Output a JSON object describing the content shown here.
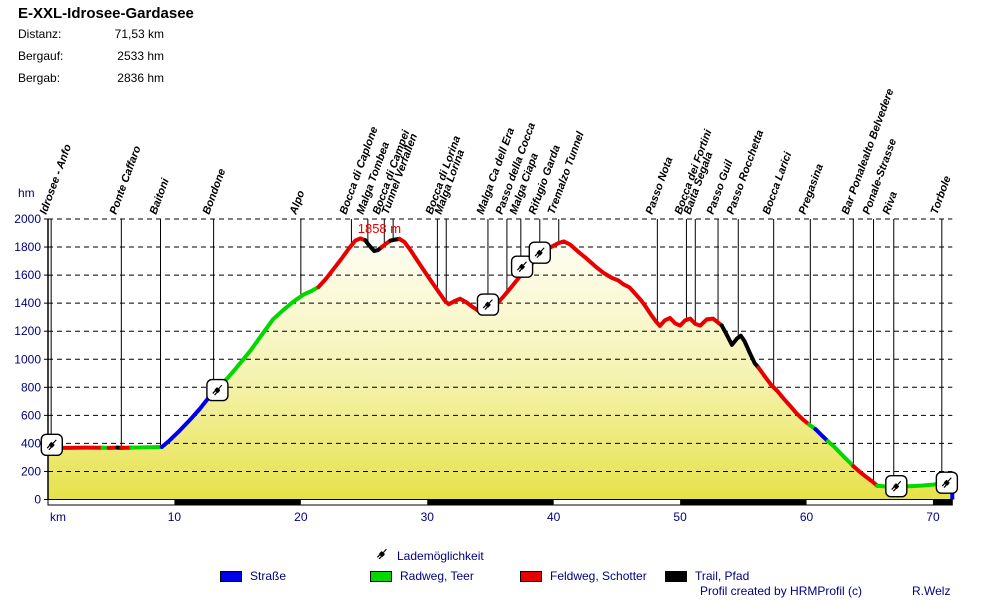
{
  "header": {
    "title": "E-XXL-Idrosee-Gardasee",
    "stats": [
      {
        "label": "Distanz:",
        "value": "71,53 km"
      },
      {
        "label": "Bergauf:",
        "value": "2533 hm"
      },
      {
        "label": "Bergab:",
        "value": "2836 hm"
      }
    ]
  },
  "chart_data": {
    "type": "area",
    "xlabel": "km",
    "ylabel": "hm",
    "xlim": [
      0,
      71.53
    ],
    "ylim": [
      0,
      2000
    ],
    "x_ticks": [
      10,
      20,
      30,
      40,
      50,
      60,
      70
    ],
    "y_tick_step": 200,
    "grid": "horizontal-dashed",
    "legend_position": "bottom",
    "peak_label": {
      "text": "1858 m",
      "km": 24.5,
      "color": "#ee0000"
    },
    "surface_colors": {
      "strasse": "#0000e8",
      "radweg": "#00d800",
      "feldweg": "#e80000",
      "trail": "#000000"
    },
    "area_fill_top": "#ffffff",
    "area_fill_mid": "#f5f3b2",
    "area_fill_bottom": "#e6e24a",
    "segments": [
      {
        "surface": "feldweg",
        "points": [
          [
            0,
            370
          ],
          [
            1.5,
            368
          ],
          [
            3,
            370
          ],
          [
            4.3,
            369
          ]
        ]
      },
      {
        "surface": "radweg",
        "points": [
          [
            4.3,
            369
          ],
          [
            4.8,
            368
          ]
        ]
      },
      {
        "surface": "feldweg",
        "points": [
          [
            4.8,
            368
          ],
          [
            5.5,
            370
          ]
        ]
      },
      {
        "surface": "trail",
        "points": [
          [
            5.5,
            370
          ],
          [
            5.8,
            368
          ]
        ]
      },
      {
        "surface": "feldweg",
        "points": [
          [
            5.8,
            368
          ],
          [
            6.6,
            370
          ]
        ]
      },
      {
        "surface": "radweg",
        "points": [
          [
            6.6,
            370
          ],
          [
            9.0,
            374
          ]
        ]
      },
      {
        "surface": "strasse",
        "points": [
          [
            9.0,
            374
          ],
          [
            9.6,
            420
          ],
          [
            10.4,
            490
          ],
          [
            11.2,
            565
          ],
          [
            12.0,
            645
          ],
          [
            12.7,
            725
          ],
          [
            13.3,
            790
          ]
        ]
      },
      {
        "surface": "radweg",
        "points": [
          [
            13.3,
            790
          ],
          [
            14.2,
            865
          ],
          [
            15.0,
            950
          ],
          [
            16.0,
            1060
          ],
          [
            17.0,
            1185
          ],
          [
            17.8,
            1285
          ],
          [
            18.6,
            1350
          ],
          [
            19.4,
            1410
          ],
          [
            20.2,
            1460
          ],
          [
            20.8,
            1485
          ],
          [
            21.4,
            1515
          ]
        ]
      },
      {
        "surface": "feldweg",
        "points": [
          [
            21.4,
            1515
          ],
          [
            22.0,
            1575
          ],
          [
            22.6,
            1645
          ],
          [
            23.2,
            1715
          ],
          [
            23.8,
            1790
          ],
          [
            24.3,
            1845
          ],
          [
            24.7,
            1862
          ],
          [
            25.1,
            1848
          ]
        ]
      },
      {
        "surface": "trail",
        "points": [
          [
            25.1,
            1848
          ],
          [
            25.4,
            1812
          ],
          [
            25.8,
            1772
          ],
          [
            26.1,
            1778
          ],
          [
            26.4,
            1800
          ]
        ]
      },
      {
        "surface": "feldweg",
        "points": [
          [
            26.4,
            1800
          ],
          [
            26.8,
            1828
          ],
          [
            27.1,
            1846
          ]
        ]
      },
      {
        "surface": "trail",
        "points": [
          [
            27.1,
            1846
          ],
          [
            27.5,
            1854
          ],
          [
            27.8,
            1858
          ]
        ]
      },
      {
        "surface": "feldweg",
        "points": [
          [
            27.8,
            1858
          ],
          [
            28.2,
            1835
          ],
          [
            28.7,
            1775
          ],
          [
            29.2,
            1705
          ],
          [
            29.8,
            1625
          ],
          [
            30.4,
            1545
          ],
          [
            31.0,
            1468
          ],
          [
            31.4,
            1415
          ],
          [
            31.7,
            1392
          ],
          [
            32.1,
            1412
          ],
          [
            32.6,
            1432
          ],
          [
            33.1,
            1405
          ],
          [
            33.6,
            1372
          ],
          [
            34.1,
            1342
          ],
          [
            34.6,
            1352
          ],
          [
            35.0,
            1338
          ],
          [
            35.5,
            1395
          ],
          [
            36.1,
            1455
          ],
          [
            36.7,
            1520
          ],
          [
            37.3,
            1588
          ],
          [
            37.9,
            1648
          ],
          [
            38.5,
            1705
          ],
          [
            39.1,
            1755
          ],
          [
            39.7,
            1795
          ],
          [
            40.3,
            1825
          ],
          [
            40.8,
            1840
          ],
          [
            41.3,
            1818
          ],
          [
            41.9,
            1770
          ],
          [
            42.6,
            1718
          ],
          [
            43.3,
            1662
          ],
          [
            44.0,
            1612
          ],
          [
            44.6,
            1580
          ],
          [
            45.1,
            1562
          ],
          [
            45.5,
            1535
          ],
          [
            46.0,
            1512
          ],
          [
            46.4,
            1472
          ],
          [
            46.9,
            1422
          ],
          [
            47.3,
            1372
          ],
          [
            47.7,
            1318
          ],
          [
            48.1,
            1268
          ],
          [
            48.4,
            1238
          ],
          [
            48.8,
            1278
          ],
          [
            49.2,
            1294
          ],
          [
            49.6,
            1256
          ],
          [
            50.0,
            1240
          ],
          [
            50.4,
            1278
          ],
          [
            50.8,
            1290
          ],
          [
            51.2,
            1252
          ],
          [
            51.6,
            1240
          ],
          [
            52.1,
            1284
          ],
          [
            52.6,
            1290
          ],
          [
            53.0,
            1262
          ],
          [
            53.3,
            1240
          ]
        ]
      },
      {
        "surface": "trail",
        "points": [
          [
            53.3,
            1240
          ],
          [
            53.7,
            1172
          ],
          [
            54.1,
            1102
          ],
          [
            54.5,
            1148
          ],
          [
            54.8,
            1168
          ],
          [
            55.1,
            1128
          ],
          [
            55.5,
            1048
          ],
          [
            55.9,
            972
          ],
          [
            56.2,
            940
          ]
        ]
      },
      {
        "surface": "feldweg",
        "points": [
          [
            56.2,
            940
          ],
          [
            56.7,
            878
          ],
          [
            57.2,
            818
          ],
          [
            57.7,
            772
          ],
          [
            58.2,
            718
          ],
          [
            58.7,
            668
          ],
          [
            59.2,
            615
          ],
          [
            59.7,
            572
          ],
          [
            60.2,
            535
          ]
        ]
      },
      {
        "surface": "radweg",
        "points": [
          [
            60.2,
            535
          ],
          [
            60.7,
            502
          ]
        ]
      },
      {
        "surface": "strasse",
        "points": [
          [
            60.7,
            502
          ],
          [
            61.2,
            458
          ],
          [
            61.7,
            415
          ]
        ]
      },
      {
        "surface": "radweg",
        "points": [
          [
            61.7,
            415
          ],
          [
            62.2,
            375
          ],
          [
            62.7,
            328
          ],
          [
            63.2,
            282
          ],
          [
            63.7,
            238
          ]
        ]
      },
      {
        "surface": "feldweg",
        "points": [
          [
            63.7,
            238
          ],
          [
            64.2,
            198
          ],
          [
            64.7,
            162
          ],
          [
            65.2,
            128
          ],
          [
            65.6,
            98
          ]
        ]
      },
      {
        "surface": "radweg",
        "points": [
          [
            65.6,
            98
          ],
          [
            66.4,
            92
          ],
          [
            67.2,
            98
          ],
          [
            68.2,
            94
          ],
          [
            69.2,
            100
          ],
          [
            70.0,
            106
          ],
          [
            70.5,
            112
          ],
          [
            71.0,
            102
          ],
          [
            71.53,
            96
          ]
        ]
      }
    ],
    "stations": [
      {
        "name": "Idrosee - Anfo",
        "km": 0.25
      },
      {
        "name": "Ponte Caffaro",
        "km": 5.8
      },
      {
        "name": "Baitoni",
        "km": 8.9
      },
      {
        "name": "Bondone",
        "km": 13.1
      },
      {
        "name": "Alpo",
        "km": 20.0
      },
      {
        "name": "Bocca di Caplone",
        "km": 24.0
      },
      {
        "name": "Malga Tombea",
        "km": 25.3
      },
      {
        "name": "Bocca di Campei",
        "km": 26.6
      },
      {
        "name": "Tunnel Verfallen",
        "km": 27.3
      },
      {
        "name": "Bocca di Lorina",
        "km": 30.8
      },
      {
        "name": "Malga Lorina",
        "km": 31.5
      },
      {
        "name": "Malga Ca dell Era",
        "km": 34.8
      },
      {
        "name": "Passo della Cocca",
        "km": 36.3
      },
      {
        "name": "Malga Ciapa",
        "km": 37.4
      },
      {
        "name": "Rifugio Garda",
        "km": 38.9
      },
      {
        "name": "Tremalzo Tunnel",
        "km": 40.4
      },
      {
        "name": "Passo Nota",
        "km": 48.2
      },
      {
        "name": "Bocca dei Fortini",
        "km": 50.5
      },
      {
        "name": "Baita Segala",
        "km": 51.2
      },
      {
        "name": "Passo Guil",
        "km": 53.0
      },
      {
        "name": "Passo Rocchetta",
        "km": 54.6
      },
      {
        "name": "Bocca Larici",
        "km": 57.4
      },
      {
        "name": "Pregasina",
        "km": 60.3
      },
      {
        "name": "Bar Ponalealto Belvedere",
        "km": 63.7
      },
      {
        "name": "Ponale-Strasse",
        "km": 65.3
      },
      {
        "name": "Riva",
        "km": 66.9
      },
      {
        "name": "Torbole",
        "km": 70.7
      }
    ],
    "charge_points": [
      {
        "km": 0.3,
        "elev": 390
      },
      {
        "km": 13.4,
        "elev": 780
      },
      {
        "km": 34.8,
        "elev": 1390
      },
      {
        "km": 37.5,
        "elev": 1660
      },
      {
        "km": 38.9,
        "elev": 1760
      },
      {
        "km": 67.1,
        "elev": 95
      },
      {
        "km": 71.1,
        "elev": 120
      }
    ],
    "end_marker": {
      "km": 71.53,
      "elev_top": 150,
      "color": "#0000e8"
    }
  },
  "legend": {
    "charge_label": "Lademöglichkeit",
    "items": [
      {
        "key": "strasse",
        "label": "Straße",
        "color": "#0000e8"
      },
      {
        "key": "radweg",
        "label": "Radweg, Teer",
        "color": "#00d800"
      },
      {
        "key": "feldweg",
        "label": "Feldweg, Schotter",
        "color": "#e80000"
      },
      {
        "key": "trail",
        "label": "Trail, Pfad",
        "color": "#000000"
      }
    ]
  },
  "footer": {
    "credit": "Profil created by HRMProfil (c)",
    "author": "R.Welz"
  },
  "text_colors": {
    "axis": "#000080",
    "station": "#000000"
  }
}
